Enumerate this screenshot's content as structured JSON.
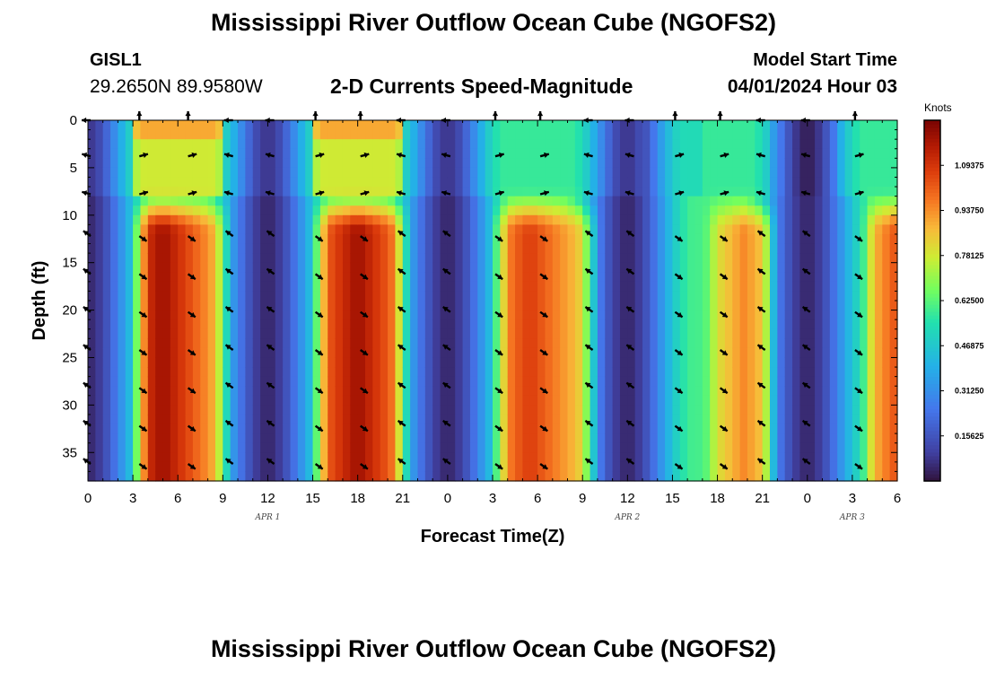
{
  "header": {
    "title": "Mississippi River Outflow Ocean Cube (NGOFS2)",
    "station_id": "GISL1",
    "station_coords": "29.2650N  89.9580W",
    "plot_title": "2-D Currents Speed-Magnitude",
    "start_label": "Model Start Time",
    "start_value": "04/01/2024 Hour 03"
  },
  "footer": {
    "title": "Mississippi River Outflow Ocean Cube (NGOFS2)"
  },
  "chart_data": {
    "type": "heatmap",
    "title": "2-D Currents Speed-Magnitude",
    "xlabel": "Forecast Time(Z)",
    "ylabel": "Depth (ft)",
    "x_range_hours": [
      0,
      54
    ],
    "y_range_ft": [
      0,
      38
    ],
    "y_inverted": true,
    "x_ticks": [
      "0",
      "3",
      "6",
      "9",
      "12",
      "15",
      "18",
      "21",
      "0",
      "3",
      "6",
      "9",
      "12",
      "15",
      "18",
      "21",
      "0",
      "3",
      "6"
    ],
    "x_tick_hours": [
      0,
      3,
      6,
      9,
      12,
      15,
      18,
      21,
      24,
      27,
      30,
      33,
      36,
      39,
      42,
      45,
      48,
      51,
      54
    ],
    "y_ticks": [
      0,
      5,
      10,
      15,
      20,
      25,
      30,
      35
    ],
    "date_labels": [
      {
        "text": "APR 1",
        "hour": 12
      },
      {
        "text": "APR 2",
        "hour": 36
      },
      {
        "text": "APR 3",
        "hour": 51
      }
    ],
    "colorbar": {
      "unit": "Knots",
      "range": [
        0,
        1.25
      ],
      "tick_labels": [
        "1.09375",
        "0.93750",
        "0.78125",
        "0.62500",
        "0.46875",
        "0.31250",
        "0.15625"
      ],
      "tick_values": [
        1.09375,
        0.9375,
        0.78125,
        0.625,
        0.46875,
        0.3125,
        0.15625
      ]
    },
    "speed_peaks": [
      {
        "hour_start": 2.8,
        "hour_end": 9.6,
        "peak_hour": 5.0,
        "max_knots": 1.2
      },
      {
        "hour_start": 14.8,
        "hour_end": 21.6,
        "peak_hour": 18.0,
        "max_knots": 1.2
      },
      {
        "hour_start": 26.8,
        "hour_end": 34.2,
        "peak_hour": 29.5,
        "max_knots": 1.08
      },
      {
        "hour_start": 41.0,
        "hour_end": 46.0,
        "peak_hour": 43.8,
        "max_knots": 0.95
      },
      {
        "hour_start": 51.6,
        "hour_end": 56.0,
        "peak_hour": 54.0,
        "max_knots": 1.05
      }
    ],
    "vector_depths_ft": [
      0,
      3.8,
      7.8,
      12.2,
      16.2,
      20.2,
      24.2,
      28.2,
      32.2,
      36.2
    ],
    "vector_hours": [
      0,
      3.25,
      6.5,
      9.5,
      12.25,
      15,
      18,
      21,
      24,
      27,
      30,
      33.5,
      36.25,
      39,
      42,
      45,
      48,
      51
    ]
  }
}
